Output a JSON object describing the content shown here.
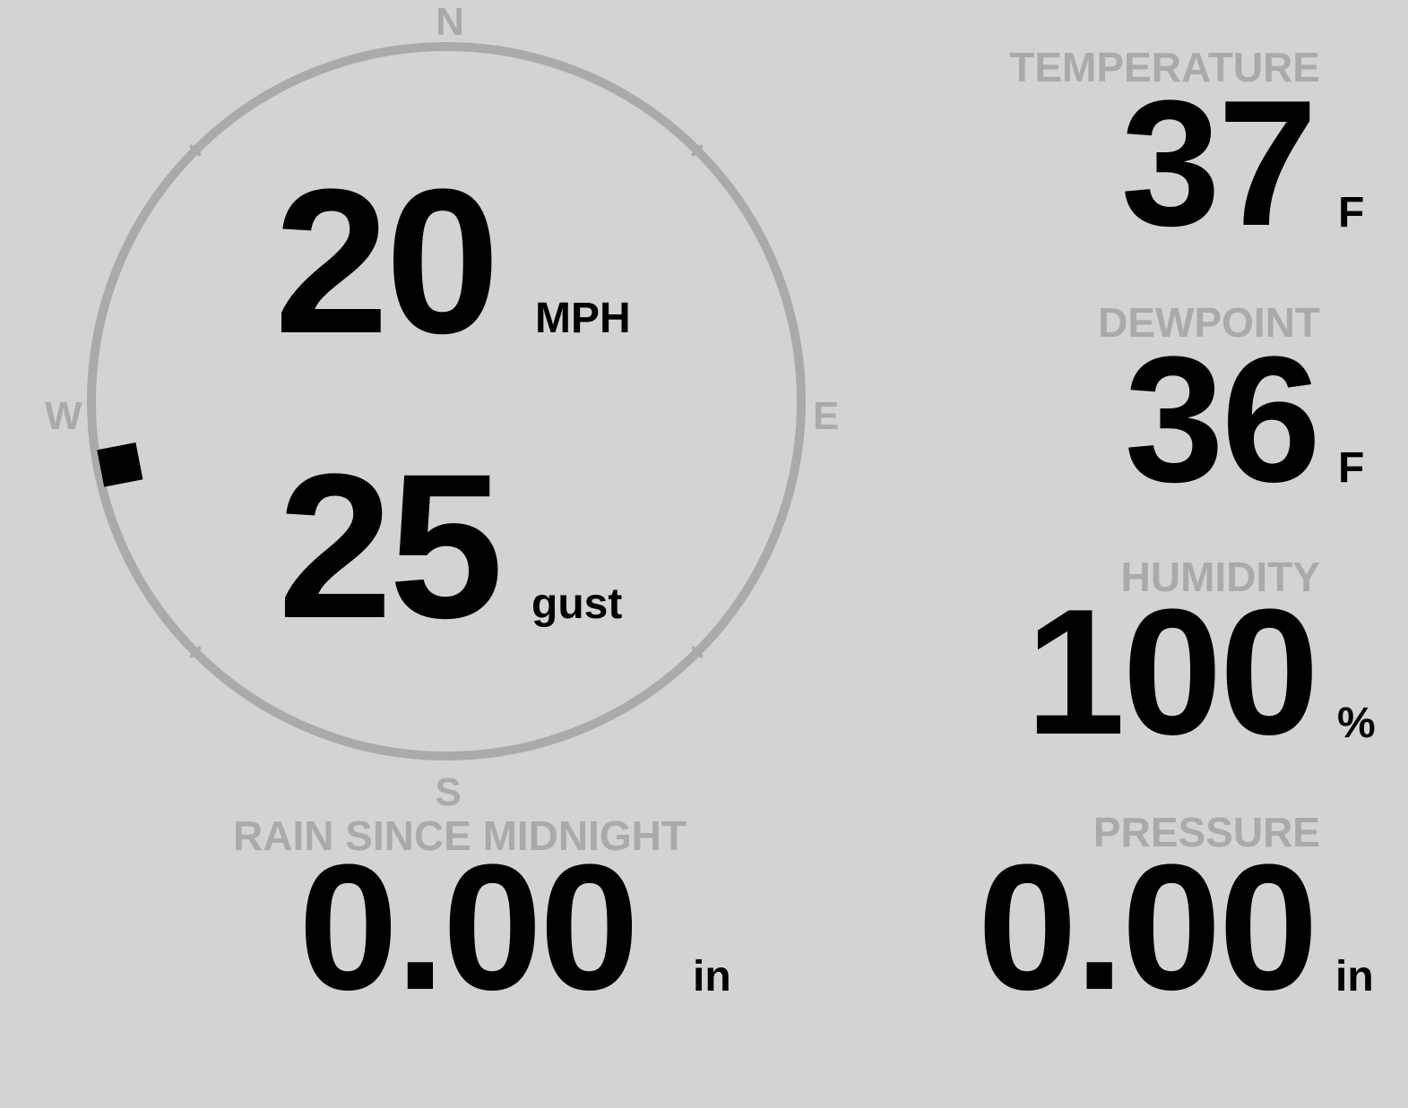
{
  "wind": {
    "compass": {
      "n": "N",
      "e": "E",
      "s": "S",
      "w": "W"
    },
    "speed": "20",
    "speed_unit": "MPH",
    "gust": "25",
    "gust_unit": "gust",
    "direction_deg": 259,
    "ring_color": "#aaaaaa",
    "marker_color": "#000000"
  },
  "rain": {
    "label": "RAIN SINCE MIDNIGHT",
    "value": "0.00",
    "unit": "in"
  },
  "temperature": {
    "label": "TEMPERATURE",
    "value": "37",
    "unit": "F"
  },
  "dewpoint": {
    "label": "DEWPOINT",
    "value": "36",
    "unit": "F"
  },
  "humidity": {
    "label": "HUMIDITY",
    "value": "100",
    "unit": "%"
  },
  "pressure": {
    "label": "PRESSURE",
    "value": "0.00",
    "unit": "in"
  }
}
